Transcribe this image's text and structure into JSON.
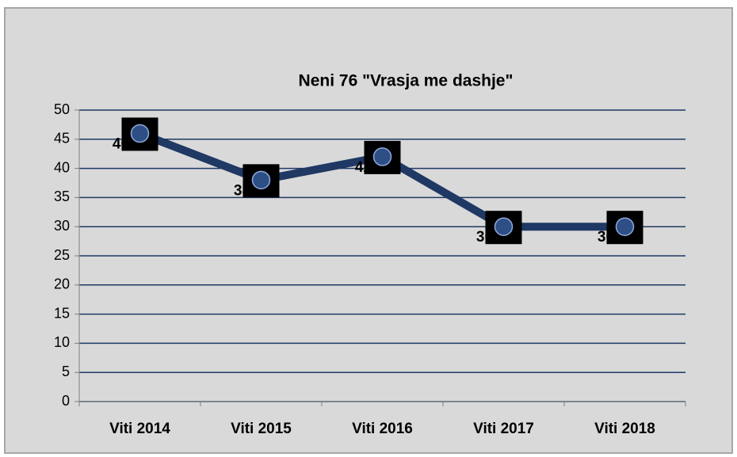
{
  "chart_data": {
    "type": "line",
    "title": "Neni  76 \"Vrasja me dashje\"",
    "categories": [
      "Viti 2014",
      "Viti 2015",
      "Viti 2016",
      "Viti 2017",
      "Viti 2018"
    ],
    "values": [
      46,
      38,
      42,
      30,
      30
    ],
    "color": "#1f3864",
    "ylim": [
      0,
      50
    ],
    "yticks": [
      0,
      5,
      10,
      15,
      20,
      25,
      30,
      35,
      40,
      45,
      50
    ],
    "grid": true
  }
}
